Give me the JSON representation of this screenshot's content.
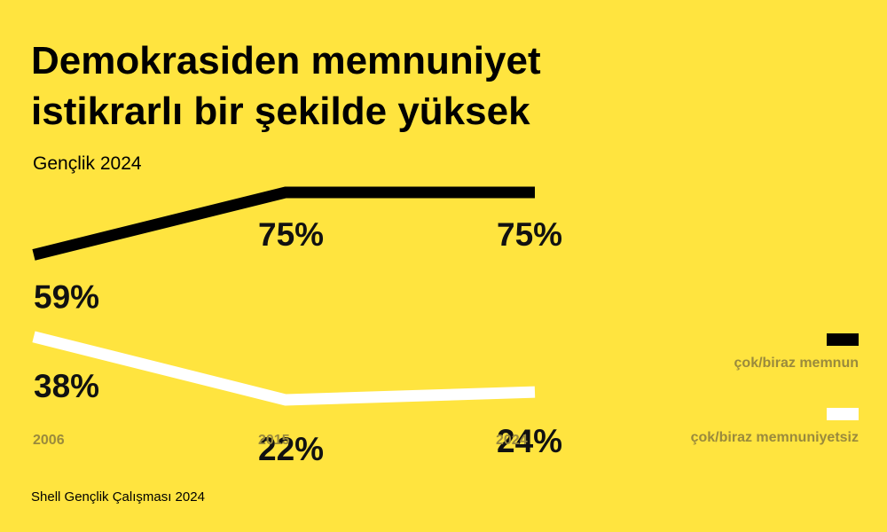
{
  "title_lines": [
    "Demokrasiden memnuniyet",
    "istikrarlı bir şekilde yüksek"
  ],
  "subtitle": "Gençlik 2024",
  "source": "Shell Gençlik Çalışması 2024",
  "colors": {
    "background": "#FFE43F",
    "satisfied": "#000000",
    "dissatisfied": "#FFFFFF",
    "muted": "#9A8A3C"
  },
  "chart_data": {
    "type": "line",
    "x": [
      "2006",
      "2015",
      "2024"
    ],
    "series": [
      {
        "name": "çok/biraz memnun",
        "values": [
          59,
          75,
          75
        ],
        "labels": [
          "59%",
          "75%",
          "75%"
        ],
        "color": "#000000"
      },
      {
        "name": "çok/biraz memnuniyetsiz",
        "values": [
          38,
          22,
          24
        ],
        "labels": [
          "38%",
          "22%",
          "24%"
        ],
        "color": "#FFFFFF"
      }
    ],
    "xlabel": "",
    "ylabel": "",
    "grid": false,
    "legend": "right"
  }
}
